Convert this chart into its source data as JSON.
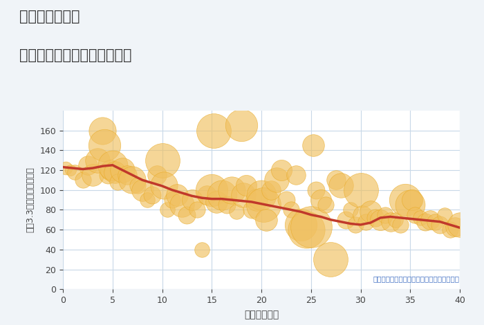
{
  "title_line1": "神奈川県古淵駅",
  "title_line2": "築年数別中古マンション価格",
  "xlabel": "築年数（年）",
  "ylabel": "坪（3.3㎡）単価（万円）",
  "annotation": "円の大きさは、取引のあった物件面積を示す",
  "xlim": [
    0,
    40
  ],
  "ylim": [
    0,
    180
  ],
  "yticks": [
    0,
    20,
    40,
    60,
    80,
    100,
    120,
    140,
    160
  ],
  "xticks": [
    0,
    5,
    10,
    15,
    20,
    25,
    30,
    35,
    40
  ],
  "bg_color": "#f0f4f8",
  "plot_bg_color": "#ffffff",
  "bubble_color": "#f0c060",
  "bubble_edge_color": "#e8a820",
  "bubble_alpha": 0.65,
  "line_color": "#c0392b",
  "line_width": 2.5,
  "scatter_data": [
    [
      0.3,
      122,
      15
    ],
    [
      0.8,
      120,
      12
    ],
    [
      1.2,
      118,
      18
    ],
    [
      2.0,
      110,
      20
    ],
    [
      2.5,
      125,
      25
    ],
    [
      3.0,
      115,
      30
    ],
    [
      3.5,
      130,
      35
    ],
    [
      4.0,
      160,
      40
    ],
    [
      4.2,
      145,
      50
    ],
    [
      4.5,
      115,
      22
    ],
    [
      4.8,
      120,
      28
    ],
    [
      5.0,
      125,
      45
    ],
    [
      5.2,
      118,
      30
    ],
    [
      5.5,
      108,
      20
    ],
    [
      6.0,
      120,
      35
    ],
    [
      6.5,
      115,
      25
    ],
    [
      7.0,
      110,
      40
    ],
    [
      7.5,
      105,
      20
    ],
    [
      8.0,
      100,
      30
    ],
    [
      8.5,
      90,
      18
    ],
    [
      9.0,
      95,
      22
    ],
    [
      9.5,
      115,
      25
    ],
    [
      10.0,
      130,
      55
    ],
    [
      10.2,
      105,
      40
    ],
    [
      10.5,
      80,
      18
    ],
    [
      11.0,
      90,
      20
    ],
    [
      11.5,
      95,
      30
    ],
    [
      12.0,
      85,
      35
    ],
    [
      12.5,
      75,
      22
    ],
    [
      13.0,
      90,
      28
    ],
    [
      13.5,
      80,
      20
    ],
    [
      14.0,
      40,
      18
    ],
    [
      14.5,
      95,
      25
    ],
    [
      15.0,
      100,
      50
    ],
    [
      15.2,
      160,
      55
    ],
    [
      15.5,
      88,
      30
    ],
    [
      16.0,
      95,
      45
    ],
    [
      16.5,
      85,
      22
    ],
    [
      17.0,
      100,
      40
    ],
    [
      17.5,
      78,
      18
    ],
    [
      18.0,
      165,
      50
    ],
    [
      18.2,
      95,
      35
    ],
    [
      18.5,
      105,
      28
    ],
    [
      19.0,
      80,
      22
    ],
    [
      19.5,
      90,
      30
    ],
    [
      20.0,
      95,
      45
    ],
    [
      20.2,
      85,
      55
    ],
    [
      20.5,
      70,
      30
    ],
    [
      21.0,
      100,
      25
    ],
    [
      21.5,
      110,
      35
    ],
    [
      22.0,
      120,
      28
    ],
    [
      22.5,
      90,
      22
    ],
    [
      23.0,
      80,
      20
    ],
    [
      23.5,
      115,
      25
    ],
    [
      24.0,
      65,
      50
    ],
    [
      24.5,
      60,
      60
    ],
    [
      25.0,
      63,
      70
    ],
    [
      25.2,
      145,
      30
    ],
    [
      25.5,
      100,
      22
    ],
    [
      26.0,
      90,
      28
    ],
    [
      26.5,
      85,
      20
    ],
    [
      27.0,
      30,
      55
    ],
    [
      27.5,
      110,
      25
    ],
    [
      28.0,
      105,
      35
    ],
    [
      28.5,
      70,
      22
    ],
    [
      29.0,
      80,
      18
    ],
    [
      29.5,
      65,
      20
    ],
    [
      30.0,
      100,
      55
    ],
    [
      30.2,
      75,
      25
    ],
    [
      30.5,
      68,
      20
    ],
    [
      31.0,
      78,
      30
    ],
    [
      31.5,
      72,
      22
    ],
    [
      32.0,
      70,
      28
    ],
    [
      32.5,
      75,
      20
    ],
    [
      33.0,
      68,
      25
    ],
    [
      33.5,
      70,
      18
    ],
    [
      34.0,
      65,
      20
    ],
    [
      34.5,
      90,
      50
    ],
    [
      35.0,
      85,
      45
    ],
    [
      35.2,
      90,
      28
    ],
    [
      35.5,
      75,
      20
    ],
    [
      36.0,
      72,
      18
    ],
    [
      36.5,
      68,
      22
    ],
    [
      37.0,
      70,
      25
    ],
    [
      37.5,
      68,
      20
    ],
    [
      38.0,
      65,
      22
    ],
    [
      38.5,
      75,
      18
    ],
    [
      39.0,
      60,
      20
    ],
    [
      39.5,
      63,
      25
    ],
    [
      40.0,
      65,
      35
    ]
  ],
  "trend_line": [
    [
      0,
      123
    ],
    [
      1,
      122
    ],
    [
      2,
      121
    ],
    [
      3,
      122
    ],
    [
      4,
      124
    ],
    [
      5,
      125
    ],
    [
      6,
      120
    ],
    [
      7,
      115
    ],
    [
      8,
      110
    ],
    [
      9,
      107
    ],
    [
      10,
      104
    ],
    [
      11,
      100
    ],
    [
      12,
      97
    ],
    [
      13,
      94
    ],
    [
      14,
      92
    ],
    [
      15,
      91
    ],
    [
      16,
      91
    ],
    [
      17,
      90
    ],
    [
      18,
      89
    ],
    [
      19,
      88
    ],
    [
      20,
      86
    ],
    [
      21,
      84
    ],
    [
      22,
      82
    ],
    [
      23,
      80
    ],
    [
      24,
      78
    ],
    [
      25,
      75
    ],
    [
      26,
      73
    ],
    [
      27,
      70
    ],
    [
      28,
      68
    ],
    [
      29,
      66
    ],
    [
      30,
      65
    ],
    [
      31,
      67
    ],
    [
      32,
      72
    ],
    [
      33,
      73
    ],
    [
      34,
      72
    ],
    [
      35,
      71
    ],
    [
      36,
      70
    ],
    [
      37,
      69
    ],
    [
      38,
      68
    ],
    [
      39,
      65
    ],
    [
      40,
      62
    ]
  ]
}
